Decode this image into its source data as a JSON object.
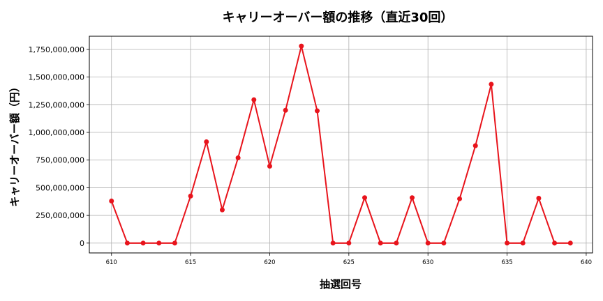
{
  "chart_data": {
    "type": "line",
    "title": "キャリーオーバー額の推移（直近30回）",
    "xlabel": "抽選回号",
    "ylabel": "キャリーオーバー額（円）",
    "x": [
      610,
      611,
      612,
      613,
      614,
      615,
      616,
      617,
      618,
      619,
      620,
      621,
      622,
      623,
      624,
      625,
      626,
      627,
      628,
      629,
      630,
      631,
      632,
      633,
      634,
      635,
      636,
      637,
      638,
      639
    ],
    "series": [
      {
        "values": [
          380000000,
          0,
          0,
          0,
          0,
          425000000,
          915000000,
          300000000,
          770000000,
          1295000000,
          695000000,
          1200000000,
          1780000000,
          1195000000,
          0,
          0,
          410000000,
          0,
          0,
          410000000,
          0,
          0,
          400000000,
          880000000,
          1435000000,
          0,
          0,
          405000000,
          0,
          0
        ],
        "color": "#e8141c"
      }
    ],
    "xticks": [
      610,
      615,
      620,
      625,
      630,
      635,
      640
    ],
    "xtick_labels": [
      "610",
      "615",
      "620",
      "625",
      "630",
      "635",
      "640"
    ],
    "yticks": [
      0,
      250000000,
      500000000,
      750000000,
      1000000000,
      1250000000,
      1500000000,
      1750000000
    ],
    "ytick_labels": [
      "0",
      "250,000,000",
      "500,000,000",
      "750,000,000",
      "1,000,000,000",
      "1,250,000,000",
      "1,500,000,000",
      "1,750,000,000"
    ],
    "xlim": [
      608.6,
      640.4
    ],
    "ylim": [
      -89000000,
      1869000000
    ],
    "grid": true,
    "marker": "circle"
  }
}
